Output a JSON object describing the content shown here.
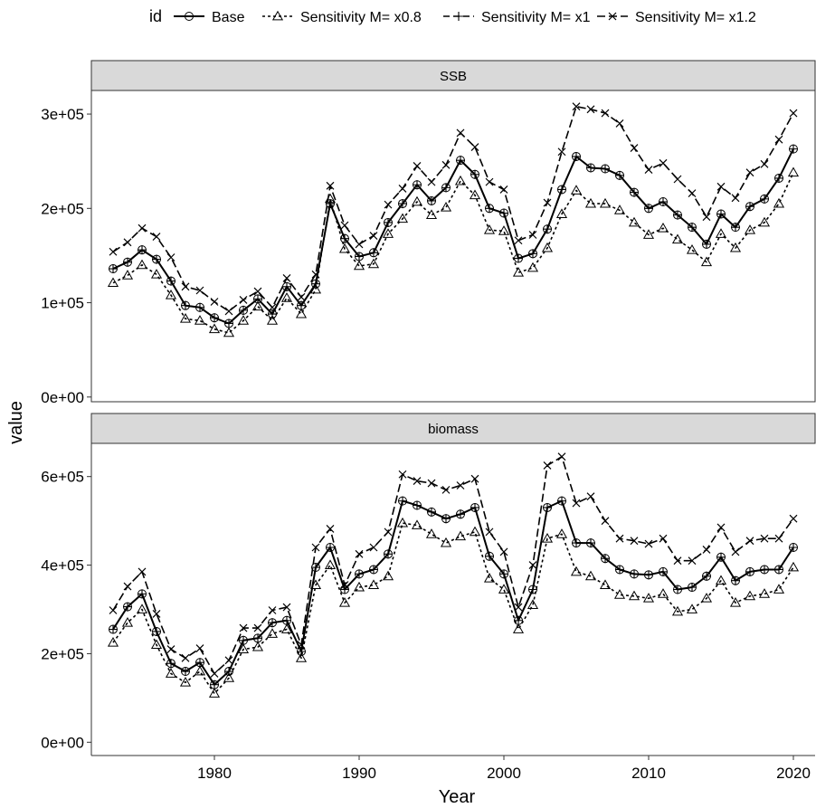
{
  "chart_data": {
    "type": "line",
    "xlabel": "Year",
    "ylabel": "value",
    "legend": {
      "title": "id",
      "position": "top",
      "entries": [
        "Base",
        "Sensitivity M= x0.8",
        "Sensitivity M= x1",
        "Sensitivity M= x1.2"
      ]
    },
    "x": [
      1973,
      1974,
      1975,
      1976,
      1977,
      1978,
      1979,
      1980,
      1981,
      1982,
      1983,
      1984,
      1985,
      1986,
      1987,
      1988,
      1989,
      1990,
      1991,
      1992,
      1993,
      1994,
      1995,
      1996,
      1997,
      1998,
      1999,
      2000,
      2001,
      2002,
      2003,
      2004,
      2005,
      2006,
      2007,
      2008,
      2009,
      2010,
      2011,
      2012,
      2013,
      2014,
      2015,
      2016,
      2017,
      2018,
      2019,
      2020
    ],
    "xlim": [
      1971.5,
      2021.5
    ],
    "xticks": [
      1980,
      1990,
      2000,
      2010,
      2020
    ],
    "panels": [
      {
        "strip": "SSB",
        "ylim": [
          -5000,
          325000
        ],
        "yticks": [
          0,
          100000,
          200000,
          300000
        ],
        "ytick_labels": [
          "0e+00",
          "1e+05",
          "2e+05",
          "3e+05"
        ],
        "series": [
          {
            "name": "Base",
            "values": [
              136000,
              143000,
              156000,
              146000,
              123000,
              97000,
              95000,
              84000,
              78000,
              92000,
              104000,
              88000,
              117000,
              97000,
              120000,
              205000,
              168000,
              149000,
              153000,
              185000,
              205000,
              225000,
              208000,
              222000,
              251000,
              236000,
              200000,
              195000,
              147000,
              152000,
              178000,
              220000,
              255000,
              243000,
              242000,
              235000,
              217000,
              200000,
              207000,
              193000,
              180000,
              162000,
              194000,
              180000,
              202000,
              210000,
              232000,
              263000
            ]
          },
          {
            "name": "Sensitivity M= x0.8",
            "values": [
              121000,
              129000,
              140000,
              130000,
              108000,
              83000,
              81000,
              72000,
              68000,
              81000,
              96000,
              81000,
              105000,
              88000,
              114000,
              210000,
              157000,
              139000,
              141000,
              173000,
              189000,
              207000,
              193000,
              201000,
              229000,
              214000,
              177000,
              176000,
              132000,
              137000,
              158000,
              194000,
              219000,
              205000,
              205000,
              198000,
              185000,
              172000,
              179000,
              167000,
              156000,
              143000,
              173000,
              158000,
              177000,
              185000,
              205000,
              238000
            ]
          },
          {
            "name": "Sensitivity M= x1",
            "values": [
              136000,
              143000,
              156000,
              146000,
              123000,
              97000,
              95000,
              84000,
              78000,
              92000,
              104000,
              88000,
              117000,
              97000,
              120000,
              205000,
              168000,
              149000,
              153000,
              185000,
              205000,
              225000,
              208000,
              222000,
              251000,
              236000,
              200000,
              195000,
              147000,
              152000,
              178000,
              220000,
              255000,
              243000,
              242000,
              235000,
              217000,
              200000,
              207000,
              193000,
              180000,
              162000,
              194000,
              180000,
              202000,
              210000,
              232000,
              263000
            ]
          },
          {
            "name": "Sensitivity M= x1.2",
            "values": [
              154000,
              164000,
              179000,
              170000,
              148000,
              117000,
              113000,
              101000,
              91000,
              103000,
              112000,
              95000,
              126000,
              106000,
              130000,
              224000,
              182000,
              162000,
              171000,
              204000,
              221000,
              245000,
              228000,
              246000,
              280000,
              265000,
              228000,
              220000,
              166000,
              172000,
              206000,
              260000,
              308000,
              305000,
              301000,
              290000,
              264000,
              241000,
              248000,
              231000,
              216000,
              191000,
              223000,
              211000,
              238000,
              247000,
              273000,
              301000
            ]
          }
        ]
      },
      {
        "strip": "biomass",
        "ylim": [
          -30000,
          675000
        ],
        "yticks": [
          0,
          200000,
          400000,
          600000
        ],
        "ytick_labels": [
          "0e+00",
          "2e+05",
          "4e+05",
          "6e+05"
        ],
        "series": [
          {
            "name": "Base",
            "values": [
              255000,
              306000,
              335000,
              250000,
              178000,
              160000,
              180000,
              130000,
              160000,
              230000,
              235000,
              270000,
              275000,
              205000,
              395000,
              440000,
              345000,
              380000,
              390000,
              425000,
              545000,
              535000,
              520000,
              505000,
              515000,
              530000,
              420000,
              380000,
              275000,
              345000,
              530000,
              545000,
              450000,
              450000,
              415000,
              390000,
              380000,
              378000,
              385000,
              345000,
              350000,
              375000,
              418000,
              365000,
              385000,
              390000,
              390000,
              440000
            ]
          },
          {
            "name": "Sensitivity M= x0.8",
            "values": [
              225000,
              270000,
              300000,
              220000,
              155000,
              135000,
              160000,
              110000,
              145000,
              210000,
              215000,
              245000,
              255000,
              190000,
              355000,
              400000,
              315000,
              350000,
              355000,
              375000,
              495000,
              490000,
              470000,
              450000,
              465000,
              475000,
              370000,
              345000,
              255000,
              310000,
              460000,
              470000,
              385000,
              375000,
              355000,
              333000,
              330000,
              325000,
              335000,
              295000,
              300000,
              325000,
              365000,
              315000,
              330000,
              335000,
              345000,
              395000
            ]
          },
          {
            "name": "Sensitivity M= x1",
            "values": [
              255000,
              306000,
              335000,
              250000,
              178000,
              160000,
              180000,
              130000,
              160000,
              230000,
              235000,
              270000,
              275000,
              205000,
              395000,
              440000,
              345000,
              380000,
              390000,
              425000,
              545000,
              535000,
              520000,
              505000,
              515000,
              530000,
              420000,
              380000,
              275000,
              345000,
              530000,
              545000,
              450000,
              450000,
              415000,
              390000,
              380000,
              378000,
              385000,
              345000,
              350000,
              375000,
              418000,
              365000,
              385000,
              390000,
              390000,
              440000
            ]
          },
          {
            "name": "Sensitivity M= x1.2",
            "values": [
              298000,
              352000,
              385000,
              290000,
              210000,
              190000,
              212000,
              155000,
              185000,
              258000,
              258000,
              298000,
              305000,
              220000,
              440000,
              482000,
              355000,
              425000,
              440000,
              475000,
              605000,
              590000,
              585000,
              570000,
              580000,
              595000,
              475000,
              430000,
              305000,
              400000,
              625000,
              645000,
              540000,
              555000,
              500000,
              460000,
              455000,
              448000,
              460000,
              410000,
              410000,
              435000,
              485000,
              430000,
              455000,
              460000,
              460000,
              505000
            ]
          }
        ]
      }
    ]
  }
}
